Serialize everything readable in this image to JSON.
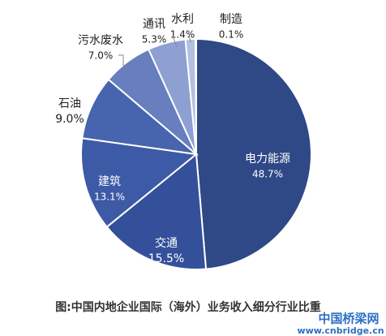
{
  "chart_data": {
    "type": "pie",
    "title": "图:中国内地企业国际（海外）业务收入细分行业比重",
    "categories": [
      "电力能源",
      "交通",
      "建筑",
      "石油",
      "污水废水",
      "通讯",
      "水利",
      "制造"
    ],
    "values": [
      48.7,
      15.5,
      13.1,
      9.0,
      7.0,
      5.3,
      1.4,
      0.1
    ],
    "value_labels": [
      "48.7%",
      "15.5%",
      "13.1%",
      "9.0%",
      "7.0%",
      "5.3%",
      "1.4%",
      "0.1%"
    ],
    "colors": [
      "#2f4886",
      "#34509a",
      "#3d5aa6",
      "#4764ae",
      "#677fbf",
      "#8ea0d1",
      "#b3c0e2",
      "#d6deef"
    ],
    "watermark": [
      "中国桥梁网",
      "www.cnbridge.cn"
    ]
  }
}
